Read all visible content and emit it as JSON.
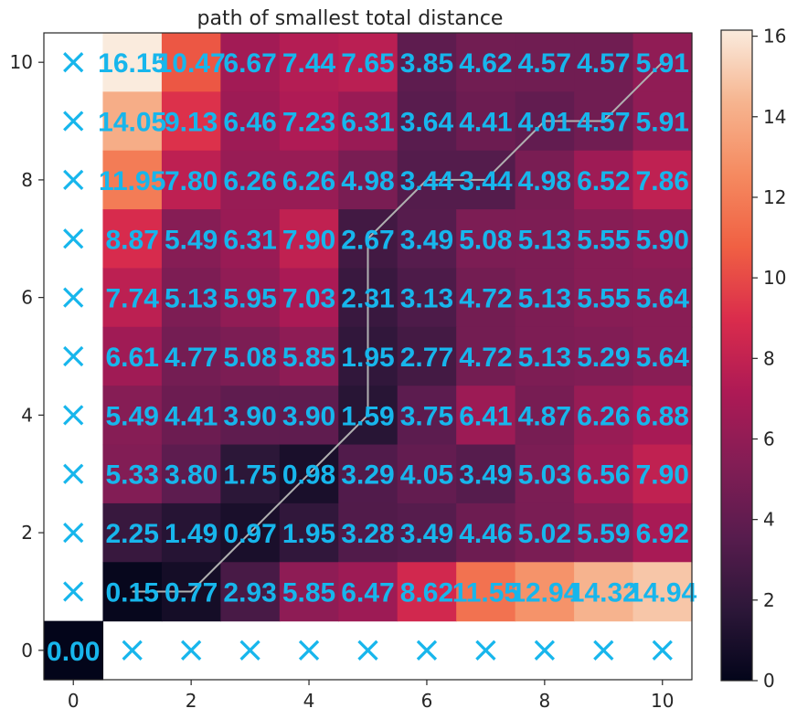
{
  "chart_data": {
    "type": "heatmap",
    "title": "path of smallest total distance",
    "xlabel": "",
    "ylabel": "",
    "xlim": [
      -0.5,
      10.5
    ],
    "ylim": [
      -0.5,
      10.5
    ],
    "x_ticks": [
      "0",
      "2",
      "4",
      "6",
      "8",
      "10"
    ],
    "y_ticks": [
      "0",
      "2",
      "4",
      "6",
      "8",
      "10"
    ],
    "colorbar": {
      "range": [
        0,
        16.15
      ],
      "ticks": [
        "0",
        "2",
        "4",
        "6",
        "8",
        "10",
        "12",
        "14",
        "16"
      ]
    },
    "colormap": [
      "#03051a",
      "#2d1739",
      "#581c4e",
      "#831d55",
      "#ae1a55",
      "#da2c4c",
      "#f06043",
      "#f58a60",
      "#f6b48f",
      "#faebdd"
    ],
    "rows_y": [
      10,
      9,
      8,
      7,
      6,
      5,
      4,
      3,
      2,
      1
    ],
    "columns_x": [
      1,
      2,
      3,
      4,
      5,
      6,
      7,
      8,
      9,
      10
    ],
    "cells": [
      [
        "16.15",
        "10.47",
        "6.67",
        "7.44",
        "7.65",
        "3.85",
        "4.62",
        "4.57",
        "4.57",
        "5.91"
      ],
      [
        "14.05",
        "9.13",
        "6.46",
        "7.23",
        "6.31",
        "3.64",
        "4.41",
        "4.01",
        "4.57",
        "5.91"
      ],
      [
        "11.95",
        "7.80",
        "6.26",
        "6.26",
        "4.98",
        "3.44",
        "3.44",
        "4.98",
        "6.52",
        "7.86"
      ],
      [
        "8.87",
        "5.49",
        "6.31",
        "7.90",
        "2.67",
        "3.49",
        "5.08",
        "5.13",
        "5.55",
        "5.90"
      ],
      [
        "7.74",
        "5.13",
        "5.95",
        "7.03",
        "2.31",
        "3.13",
        "4.72",
        "5.13",
        "5.55",
        "5.64"
      ],
      [
        "6.61",
        "4.77",
        "5.08",
        "5.85",
        "1.95",
        "2.77",
        "4.72",
        "5.13",
        "5.29",
        "5.64"
      ],
      [
        "5.49",
        "4.41",
        "3.90",
        "3.90",
        "1.59",
        "3.75",
        "6.41",
        "4.87",
        "6.26",
        "6.88"
      ],
      [
        "5.33",
        "3.80",
        "1.75",
        "0.98",
        "3.29",
        "4.05",
        "3.49",
        "5.03",
        "6.56",
        "7.90"
      ],
      [
        "2.25",
        "1.49",
        "0.97",
        "1.95",
        "3.28",
        "3.49",
        "4.46",
        "5.02",
        "5.59",
        "6.92"
      ],
      [
        "0.15",
        "0.77",
        "2.93",
        "5.85",
        "6.47",
        "8.62",
        "11.55",
        "12.94",
        "14.32",
        "14.94"
      ]
    ],
    "origin_cell": {
      "x": 0,
      "y": 0,
      "value": "0.00"
    },
    "x_marker_label": "×",
    "x_marker_positions": {
      "column_0_rows": [
        1,
        2,
        3,
        4,
        5,
        6,
        7,
        8,
        9,
        10
      ],
      "row_0_columns": [
        1,
        2,
        3,
        4,
        5,
        6,
        7,
        8,
        9,
        10
      ]
    },
    "path": [
      [
        1,
        1
      ],
      [
        2,
        1
      ],
      [
        3,
        2
      ],
      [
        4,
        3
      ],
      [
        5,
        4
      ],
      [
        5,
        5
      ],
      [
        5,
        6
      ],
      [
        5,
        7
      ],
      [
        6,
        8
      ],
      [
        7,
        8
      ],
      [
        8,
        9
      ],
      [
        9,
        9
      ],
      [
        10,
        10
      ]
    ],
    "path_color": "#b0b0b0",
    "marker_color": "#17b6ec"
  }
}
